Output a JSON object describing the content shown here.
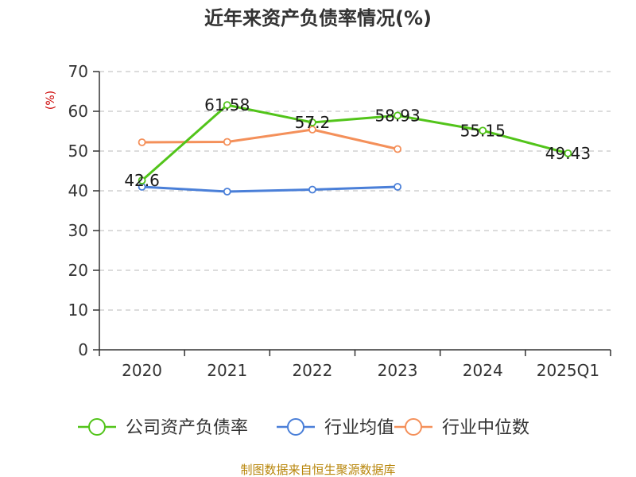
{
  "chart_data": {
    "type": "line",
    "title": "近年来资产负债率情况(%)",
    "ylabel": "(%)",
    "xlabel": "",
    "categories": [
      "2020",
      "2021",
      "2022",
      "2023",
      "2024",
      "2025Q1"
    ],
    "yticks": [
      "0",
      "10",
      "20",
      "30",
      "40",
      "50",
      "60",
      "70"
    ],
    "ylim": [
      0,
      70
    ],
    "grid": true,
    "legend_position": "bottom",
    "series": [
      {
        "name": "公司资产负债率",
        "color": "#52c41a",
        "values": [
          42.6,
          61.58,
          57.2,
          58.93,
          55.15,
          49.43
        ],
        "labels": [
          "42.6",
          "61.58",
          "57.2",
          "58.93",
          "55.15",
          "49.43"
        ]
      },
      {
        "name": "行业均值",
        "color": "#4a7fd8",
        "values": [
          41.0,
          39.8,
          40.3,
          41.0,
          null,
          null
        ]
      },
      {
        "name": "行业中位数",
        "color": "#f4905a",
        "values": [
          52.2,
          52.3,
          55.4,
          50.5,
          null,
          null
        ]
      }
    ]
  },
  "footer": "制图数据来自恒生聚源数据库"
}
